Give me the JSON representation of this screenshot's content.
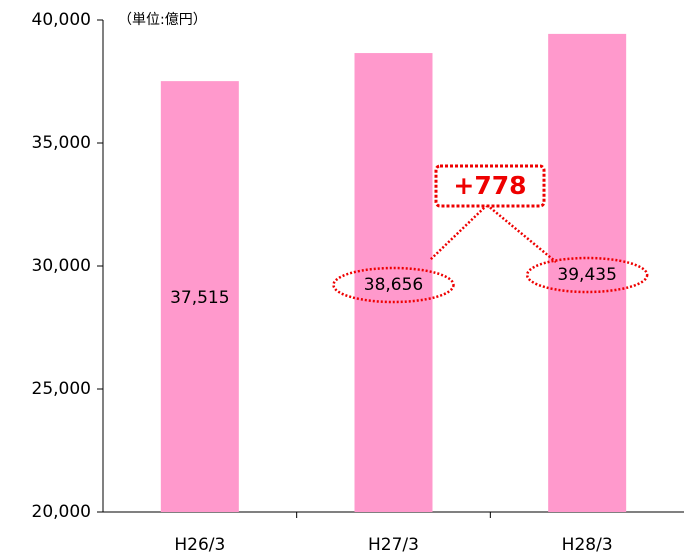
{
  "chart_data": {
    "type": "bar",
    "unit_label": "（単位:億円）",
    "categories": [
      "H26/3",
      "H27/3",
      "H28/3"
    ],
    "values": [
      37515,
      38656,
      39435
    ],
    "value_labels": [
      "37,515",
      "38,656",
      "39,435"
    ],
    "color": "#ff99cc",
    "ylim": [
      20000,
      40000
    ],
    "yticks": [
      {
        "value": 20000,
        "label": "20,000"
      },
      {
        "value": 25000,
        "label": "25,000"
      },
      {
        "value": 30000,
        "label": "30,000"
      },
      {
        "value": 35000,
        "label": "35,000"
      },
      {
        "value": 40000,
        "label": "40,000"
      }
    ],
    "annotation": "+778"
  }
}
